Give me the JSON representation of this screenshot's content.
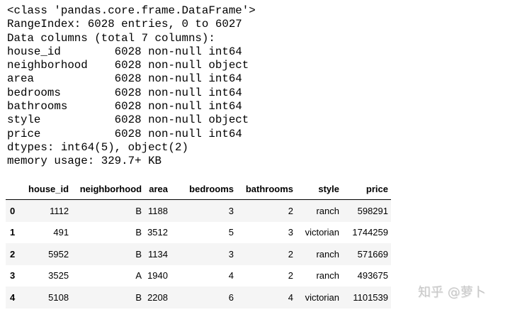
{
  "info_lines": [
    "<class 'pandas.core.frame.DataFrame'>",
    "RangeIndex: 6028 entries, 0 to 6027",
    "Data columns (total 7 columns):",
    "house_id        6028 non-null int64",
    "neighborhood    6028 non-null object",
    "area            6028 non-null int64",
    "bedrooms        6028 non-null int64",
    "bathrooms       6028 non-null int64",
    "style           6028 non-null object",
    "price           6028 non-null int64",
    "dtypes: int64(5), object(2)",
    "memory usage: 329.7+ KB"
  ],
  "table": {
    "columns": [
      "",
      "house_id",
      "neighborhood",
      "area",
      "bedrooms",
      "bathrooms",
      "style",
      "price"
    ],
    "rows": [
      [
        "0",
        "1112",
        "B",
        "1188",
        "3",
        "2",
        "ranch",
        "598291"
      ],
      [
        "1",
        "491",
        "B",
        "3512",
        "5",
        "3",
        "victorian",
        "1744259"
      ],
      [
        "2",
        "5952",
        "B",
        "1134",
        "3",
        "2",
        "ranch",
        "571669"
      ],
      [
        "3",
        "3525",
        "A",
        "1940",
        "4",
        "2",
        "ranch",
        "493675"
      ],
      [
        "4",
        "5108",
        "B",
        "2208",
        "6",
        "4",
        "victorian",
        "1101539"
      ]
    ]
  },
  "watermark": "知乎 @萝卜"
}
